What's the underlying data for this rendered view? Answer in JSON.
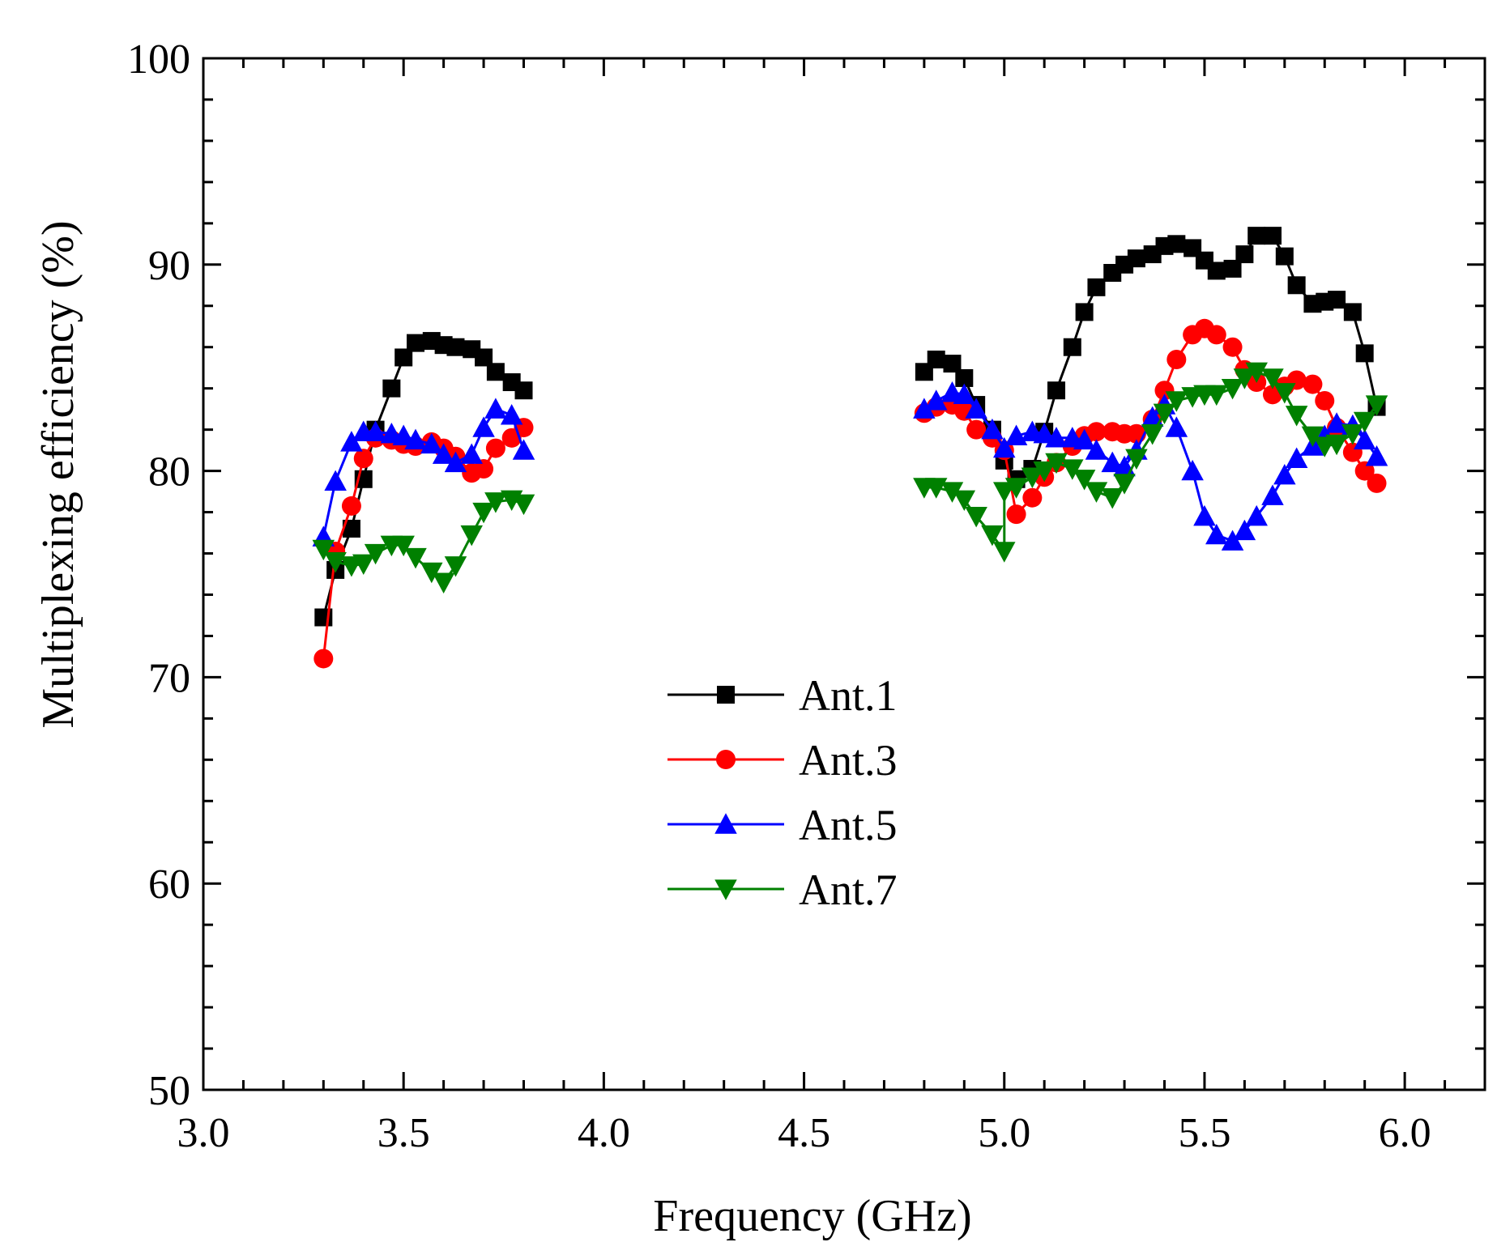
{
  "chart_data": {
    "type": "line",
    "title": "",
    "xlabel": "Frequency (GHz)",
    "ylabel": "Multiplexing efficiency (%)",
    "xlim": [
      3.0,
      6.2
    ],
    "ylim": [
      50,
      100
    ],
    "xticks": [
      3.0,
      3.5,
      4.0,
      4.5,
      5.0,
      5.5,
      6.0
    ],
    "yticks": [
      50,
      60,
      70,
      80,
      90,
      100
    ],
    "x_tick_labels": [
      "3.0",
      "3.5",
      "4.0",
      "4.5",
      "5.0",
      "5.5",
      "6.0"
    ],
    "y_tick_labels": [
      "50",
      "60",
      "70",
      "80",
      "90",
      "100"
    ],
    "grid": false,
    "legend_position": "center",
    "series": [
      {
        "name": "Ant.1",
        "color": "#000000",
        "marker": "square",
        "segments": [
          [
            [
              3.3,
              72.9
            ],
            [
              3.33,
              75.2
            ],
            [
              3.37,
              77.2
            ],
            [
              3.4,
              79.6
            ],
            [
              3.43,
              82.0
            ],
            [
              3.47,
              84.0
            ],
            [
              3.5,
              85.5
            ],
            [
              3.53,
              86.2
            ],
            [
              3.57,
              86.3
            ],
            [
              3.6,
              86.1
            ],
            [
              3.63,
              86.0
            ],
            [
              3.67,
              85.9
            ],
            [
              3.7,
              85.5
            ],
            [
              3.73,
              84.8
            ],
            [
              3.77,
              84.3
            ],
            [
              3.8,
              83.9
            ]
          ],
          [
            [
              4.8,
              84.8
            ],
            [
              4.83,
              85.4
            ],
            [
              4.87,
              85.2
            ],
            [
              4.9,
              84.5
            ],
            [
              4.93,
              83.2
            ],
            [
              4.97,
              82.0
            ],
            [
              5.0,
              80.5
            ],
            [
              5.03,
              79.6
            ],
            [
              5.07,
              80.1
            ],
            [
              5.1,
              81.9
            ],
            [
              5.13,
              83.9
            ],
            [
              5.17,
              86.0
            ],
            [
              5.2,
              87.7
            ],
            [
              5.23,
              88.9
            ],
            [
              5.27,
              89.6
            ],
            [
              5.3,
              90.0
            ],
            [
              5.33,
              90.3
            ],
            [
              5.37,
              90.5
            ],
            [
              5.4,
              90.9
            ],
            [
              5.43,
              91.0
            ],
            [
              5.47,
              90.8
            ],
            [
              5.5,
              90.2
            ],
            [
              5.53,
              89.7
            ],
            [
              5.57,
              89.8
            ],
            [
              5.6,
              90.5
            ],
            [
              5.63,
              91.4
            ],
            [
              5.67,
              91.4
            ],
            [
              5.7,
              90.4
            ],
            [
              5.73,
              89.0
            ],
            [
              5.77,
              88.1
            ],
            [
              5.8,
              88.2
            ],
            [
              5.83,
              88.3
            ],
            [
              5.87,
              87.7
            ],
            [
              5.9,
              85.7
            ],
            [
              5.93,
              83.1
            ]
          ]
        ]
      },
      {
        "name": "Ant.3",
        "color": "#ff0000",
        "marker": "circle",
        "segments": [
          [
            [
              3.3,
              70.9
            ],
            [
              3.33,
              76.1
            ],
            [
              3.37,
              78.3
            ],
            [
              3.4,
              80.6
            ],
            [
              3.43,
              81.6
            ],
            [
              3.47,
              81.5
            ],
            [
              3.5,
              81.3
            ],
            [
              3.53,
              81.2
            ],
            [
              3.57,
              81.4
            ],
            [
              3.6,
              81.1
            ],
            [
              3.63,
              80.7
            ],
            [
              3.67,
              79.9
            ],
            [
              3.7,
              80.1
            ],
            [
              3.73,
              81.1
            ],
            [
              3.77,
              81.6
            ],
            [
              3.8,
              82.1
            ]
          ],
          [
            [
              4.8,
              82.8
            ],
            [
              4.83,
              83.1
            ],
            [
              4.87,
              83.2
            ],
            [
              4.9,
              82.9
            ],
            [
              4.93,
              82.0
            ],
            [
              4.97,
              81.6
            ],
            [
              5.0,
              81.0
            ],
            [
              5.03,
              77.9
            ],
            [
              5.07,
              78.7
            ],
            [
              5.1,
              79.7
            ],
            [
              5.13,
              80.4
            ],
            [
              5.17,
              81.2
            ],
            [
              5.2,
              81.7
            ],
            [
              5.23,
              81.9
            ],
            [
              5.27,
              81.9
            ],
            [
              5.3,
              81.8
            ],
            [
              5.33,
              81.8
            ],
            [
              5.37,
              82.5
            ],
            [
              5.4,
              83.9
            ],
            [
              5.43,
              85.4
            ],
            [
              5.47,
              86.6
            ],
            [
              5.5,
              86.9
            ],
            [
              5.53,
              86.6
            ],
            [
              5.57,
              86.0
            ],
            [
              5.6,
              84.9
            ],
            [
              5.63,
              84.3
            ],
            [
              5.67,
              83.7
            ],
            [
              5.7,
              84.1
            ],
            [
              5.73,
              84.4
            ],
            [
              5.77,
              84.2
            ],
            [
              5.8,
              83.4
            ],
            [
              5.83,
              82.1
            ],
            [
              5.87,
              80.9
            ],
            [
              5.9,
              80.0
            ],
            [
              5.93,
              79.4
            ]
          ]
        ]
      },
      {
        "name": "Ant.5",
        "color": "#0000ff",
        "marker": "triangle-up",
        "segments": [
          [
            [
              3.3,
              76.8
            ],
            [
              3.33,
              79.5
            ],
            [
              3.37,
              81.4
            ],
            [
              3.4,
              81.9
            ],
            [
              3.43,
              81.9
            ],
            [
              3.47,
              81.8
            ],
            [
              3.5,
              81.7
            ],
            [
              3.53,
              81.5
            ],
            [
              3.57,
              81.3
            ],
            [
              3.6,
              80.8
            ],
            [
              3.63,
              80.4
            ],
            [
              3.67,
              80.8
            ],
            [
              3.7,
              82.1
            ],
            [
              3.73,
              83.0
            ],
            [
              3.77,
              82.7
            ],
            [
              3.8,
              81.0
            ]
          ],
          [
            [
              4.8,
              83.0
            ],
            [
              4.83,
              83.4
            ],
            [
              4.87,
              83.8
            ],
            [
              4.9,
              83.7
            ],
            [
              4.93,
              83.0
            ],
            [
              4.97,
              82.0
            ],
            [
              5.0,
              81.1
            ],
            [
              5.03,
              81.7
            ],
            [
              5.07,
              81.9
            ],
            [
              5.1,
              81.8
            ],
            [
              5.13,
              81.6
            ],
            [
              5.17,
              81.6
            ],
            [
              5.2,
              81.5
            ],
            [
              5.23,
              81.0
            ],
            [
              5.27,
              80.4
            ],
            [
              5.3,
              80.2
            ],
            [
              5.33,
              81.0
            ],
            [
              5.37,
              82.6
            ],
            [
              5.4,
              83.2
            ],
            [
              5.43,
              82.1
            ],
            [
              5.47,
              80.0
            ],
            [
              5.5,
              77.8
            ],
            [
              5.53,
              76.9
            ],
            [
              5.57,
              76.6
            ],
            [
              5.6,
              77.1
            ],
            [
              5.63,
              77.8
            ],
            [
              5.67,
              78.8
            ],
            [
              5.7,
              79.8
            ],
            [
              5.73,
              80.6
            ],
            [
              5.77,
              81.2
            ],
            [
              5.8,
              81.7
            ],
            [
              5.83,
              82.3
            ],
            [
              5.87,
              82.2
            ],
            [
              5.9,
              81.5
            ],
            [
              5.93,
              80.7
            ]
          ]
        ]
      },
      {
        "name": "Ant.7",
        "color": "#008000",
        "marker": "triangle-down",
        "segments": [
          [
            [
              3.3,
              76.2
            ],
            [
              3.33,
              75.6
            ],
            [
              3.37,
              75.4
            ],
            [
              3.4,
              75.5
            ],
            [
              3.43,
              76.0
            ],
            [
              3.47,
              76.4
            ],
            [
              3.5,
              76.4
            ],
            [
              3.53,
              75.8
            ],
            [
              3.57,
              75.1
            ],
            [
              3.6,
              74.6
            ],
            [
              3.63,
              75.4
            ],
            [
              3.67,
              76.9
            ],
            [
              3.7,
              78.0
            ],
            [
              3.73,
              78.5
            ],
            [
              3.77,
              78.6
            ],
            [
              3.8,
              78.4
            ]
          ],
          [
            [
              4.8,
              79.2
            ],
            [
              4.83,
              79.2
            ],
            [
              4.87,
              79.0
            ],
            [
              4.9,
              78.6
            ],
            [
              4.93,
              77.8
            ],
            [
              4.97,
              76.9
            ],
            [
              5.0,
              76.1
            ],
            [
              5.0,
              79.0
            ],
            [
              5.03,
              79.2
            ],
            [
              5.07,
              79.7
            ],
            [
              5.1,
              80.0
            ],
            [
              5.13,
              80.4
            ],
            [
              5.17,
              80.1
            ],
            [
              5.2,
              79.6
            ],
            [
              5.23,
              79.0
            ],
            [
              5.27,
              78.7
            ],
            [
              5.3,
              79.4
            ],
            [
              5.33,
              80.6
            ],
            [
              5.37,
              81.8
            ],
            [
              5.4,
              82.8
            ],
            [
              5.43,
              83.4
            ],
            [
              5.47,
              83.6
            ],
            [
              5.5,
              83.7
            ],
            [
              5.53,
              83.7
            ],
            [
              5.57,
              84.0
            ],
            [
              5.6,
              84.5
            ],
            [
              5.63,
              84.8
            ],
            [
              5.67,
              84.5
            ],
            [
              5.7,
              83.8
            ],
            [
              5.73,
              82.7
            ],
            [
              5.77,
              81.7
            ],
            [
              5.8,
              81.2
            ],
            [
              5.83,
              81.3
            ],
            [
              5.87,
              81.8
            ],
            [
              5.9,
              82.4
            ],
            [
              5.93,
              83.2
            ]
          ]
        ]
      }
    ]
  }
}
